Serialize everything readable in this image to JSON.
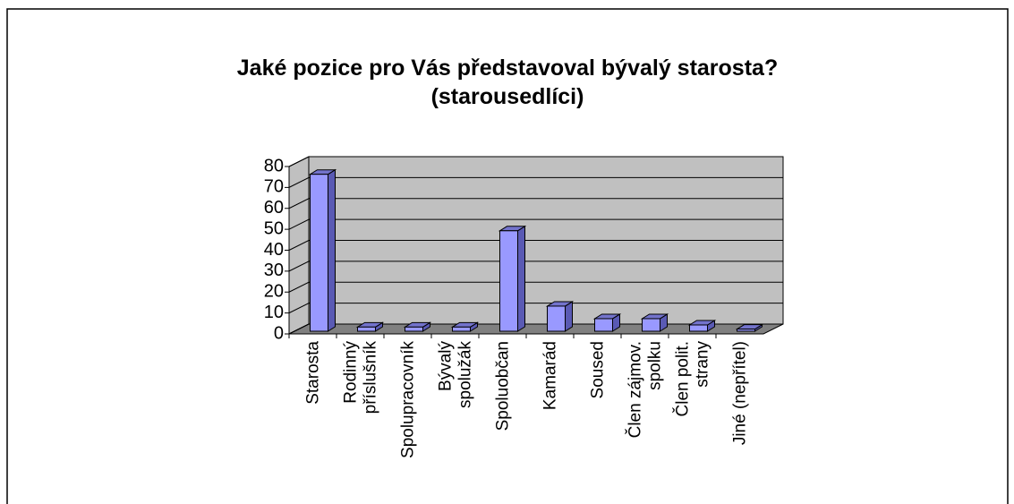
{
  "chart_data": {
    "type": "bar3d",
    "title": [
      "Jaké pozice pro Vás představoval bývalý starosta?",
      "(starousedlíci)"
    ],
    "categories": [
      [
        "Starosta"
      ],
      [
        "Rodinný",
        "příslušník"
      ],
      [
        "Spolupracovník"
      ],
      [
        "Bývalý",
        "spolužák"
      ],
      [
        "Spoluobčan"
      ],
      [
        "Kamarád"
      ],
      [
        "Soused"
      ],
      [
        "Člen zájmov.",
        "spolku"
      ],
      [
        "Člen polit.",
        "strany"
      ],
      [
        "Jiné (nepřítel)"
      ]
    ],
    "values": [
      75,
      2,
      2,
      2,
      48,
      12,
      6,
      6,
      3,
      1
    ],
    "color": "#9999ff",
    "ylim": [
      0,
      80
    ],
    "yticks": [
      0,
      10,
      20,
      30,
      40,
      50,
      60,
      70,
      80
    ],
    "grid": true
  }
}
